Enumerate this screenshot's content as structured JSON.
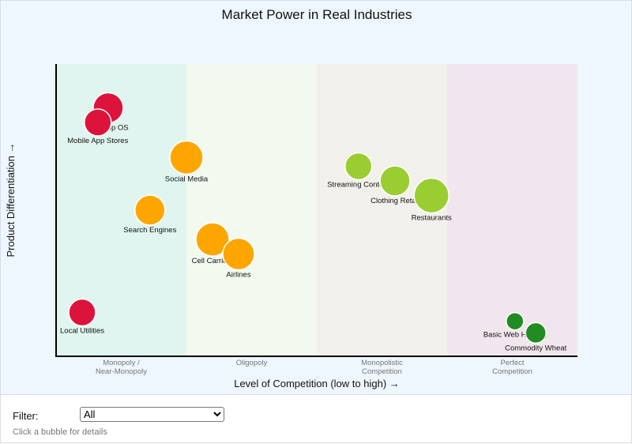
{
  "chart_data": {
    "type": "scatter",
    "title": "Market Power in Real Industries",
    "xlabel": "Level of Competition (low to high) →",
    "ylabel": "Product Differentiation →",
    "bands": [
      {
        "label_lines": [
          "Monopoly /",
          "Near-Monopoly"
        ],
        "color": "#e0f5ef"
      },
      {
        "label_lines": [
          "Oligopoly"
        ],
        "color": "#f2f9ef"
      },
      {
        "label_lines": [
          "Monopolistic",
          "Competition"
        ],
        "color": "#f2f0ea"
      },
      {
        "label_lines": [
          "Perfect",
          "Competition"
        ],
        "color": "#f2e6ee"
      }
    ],
    "xlim": [
      0,
      100
    ],
    "ylim": [
      0,
      100
    ],
    "grid": false,
    "points": [
      {
        "name": "Desktop OS",
        "x": 10,
        "y": 85,
        "size": 19,
        "color": "#dc143c"
      },
      {
        "name": "Mobile App Stores",
        "x": 8,
        "y": 80,
        "size": 17,
        "color": "#dc143c"
      },
      {
        "name": "Social Media",
        "x": 25,
        "y": 68,
        "size": 21,
        "color": "#ffa500"
      },
      {
        "name": "Search Engines",
        "x": 18,
        "y": 50,
        "size": 19,
        "color": "#ffa500"
      },
      {
        "name": "Cell Carriers",
        "x": 30,
        "y": 40,
        "size": 21,
        "color": "#ffa500"
      },
      {
        "name": "Airlines",
        "x": 35,
        "y": 35,
        "size": 20,
        "color": "#ffa500"
      },
      {
        "name": "Local Utilities",
        "x": 5,
        "y": 15,
        "size": 17,
        "color": "#dc143c"
      },
      {
        "name": "Streaming Content",
        "x": 58,
        "y": 65,
        "size": 17,
        "color": "#9acd32"
      },
      {
        "name": "Clothing Retail",
        "x": 65,
        "y": 60,
        "size": 19,
        "color": "#9acd32"
      },
      {
        "name": "Restaurants",
        "x": 72,
        "y": 55,
        "size": 22,
        "color": "#9acd32"
      },
      {
        "name": "Basic Web Hosting",
        "x": 88,
        "y": 12,
        "size": 11,
        "color": "#228b22"
      },
      {
        "name": "Commodity Wheat",
        "x": 92,
        "y": 8,
        "size": 13,
        "color": "#228b22"
      }
    ]
  },
  "controls": {
    "filter_label": "Filter:",
    "filter_value": "All",
    "hint": "Click a bubble for details"
  }
}
